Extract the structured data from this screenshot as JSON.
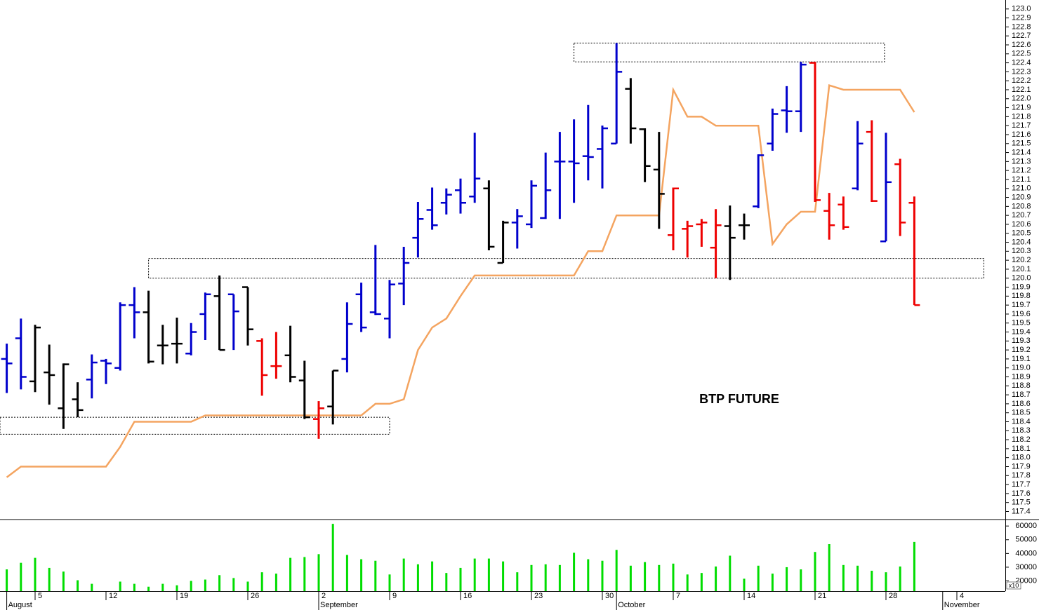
{
  "chart_data": {
    "type": "ohlc",
    "annotation": "BTP FUTURE",
    "x": [
      0,
      1,
      2,
      3,
      4,
      5,
      6,
      7,
      8,
      9,
      10,
      11,
      12,
      13,
      14,
      15,
      16,
      17,
      18,
      19,
      20,
      21,
      22,
      23,
      24,
      25,
      26,
      27,
      28,
      29,
      30,
      31,
      32,
      33,
      34,
      35,
      36,
      37,
      38,
      39,
      40,
      41,
      42,
      43,
      44,
      45,
      46,
      47,
      48,
      49,
      50,
      51,
      52,
      53,
      54,
      55,
      56,
      57,
      58,
      59,
      60,
      61,
      62,
      63,
      64
    ],
    "xlim": [
      -0.475,
      70.416
    ],
    "xticks": [
      {
        "value": 2,
        "label": "5"
      },
      {
        "value": 7,
        "label": "12"
      },
      {
        "value": 12,
        "label": "19"
      },
      {
        "value": 17,
        "label": "26"
      },
      {
        "value": 22,
        "label": "2"
      },
      {
        "value": 27,
        "label": "9"
      },
      {
        "value": 32,
        "label": "16"
      },
      {
        "value": 37,
        "label": "23"
      },
      {
        "value": 42,
        "label": "30"
      },
      {
        "value": 47,
        "label": "7"
      },
      {
        "value": 52,
        "label": "14"
      },
      {
        "value": 57,
        "label": "21"
      },
      {
        "value": 62,
        "label": "28"
      },
      {
        "value": 67,
        "label": "4"
      }
    ],
    "month_labels": [
      {
        "value": 0,
        "label": "August"
      },
      {
        "value": 22,
        "label": "September"
      },
      {
        "value": 43,
        "label": "October"
      },
      {
        "value": 66,
        "label": "November"
      }
    ],
    "ylim": [
      117.31,
      123.1
    ],
    "yticks": [
      117.4,
      117.5,
      117.6,
      117.7,
      117.8,
      117.9,
      {
        "value": 118,
        "label": "118.0"
      },
      118.1,
      118.2,
      118.3,
      118.4,
      118.5,
      118.6,
      118.7,
      118.8,
      118.9,
      {
        "value": 119,
        "label": "119.0"
      },
      119.1,
      119.2,
      119.3,
      119.4,
      119.5,
      119.6,
      119.7,
      119.8,
      119.9,
      {
        "value": 120,
        "label": "120.0"
      },
      120.1,
      120.2,
      120.3,
      120.4,
      120.5,
      120.6,
      120.7,
      120.8,
      120.9,
      {
        "value": 121,
        "label": "121.0"
      },
      121.1,
      121.2,
      121.3,
      121.4,
      121.5,
      121.6,
      121.7,
      121.8,
      121.9,
      {
        "value": 122,
        "label": "122.0"
      },
      122.1,
      122.2,
      122.3,
      122.4,
      122.5,
      122.6,
      122.7,
      122.8,
      122.9,
      {
        "value": 123,
        "label": "123.0"
      }
    ],
    "ohlc": {
      "open": [
        119.1,
        119.33,
        118.85,
        118.95,
        118.55,
        118.65,
        118.87,
        119.08,
        119.0,
        119.7,
        119.62,
        119.25,
        119.27,
        119.16,
        119.6,
        119.8,
        119.82,
        119.9,
        119.3,
        119.02,
        119.14,
        118.86,
        118.43,
        118.57,
        119.1,
        119.82,
        119.62,
        119.55,
        119.94,
        120.45,
        120.76,
        120.84,
        120.98,
        120.91,
        121.0,
        120.17,
        120.62,
        120.6,
        120.67,
        121.3,
        121.3,
        121.36,
        121.44,
        121.5,
        122.11,
        121.66,
        121.21,
        120.48,
        120.55,
        120.6,
        120.34,
        120.58,
        120.59,
        120.8,
        121.5,
        121.87,
        121.86,
        122.4,
        120.75,
        120.82,
        121.0,
        121.63,
        120.41,
        121.27,
        120.84
      ],
      "high": [
        119.27,
        119.55,
        119.48,
        119.26,
        119.05,
        118.84,
        119.15,
        119.1,
        119.73,
        119.9,
        119.86,
        119.48,
        119.56,
        119.5,
        119.84,
        120.03,
        119.82,
        119.9,
        119.33,
        119.4,
        119.47,
        119.08,
        118.63,
        118.97,
        119.73,
        119.95,
        120.37,
        119.98,
        120.35,
        120.85,
        121.01,
        121.0,
        121.11,
        121.62,
        121.09,
        120.64,
        120.77,
        121.09,
        121.4,
        121.63,
        121.77,
        121.93,
        121.7,
        122.62,
        122.23,
        121.67,
        121.63,
        121.01,
        120.64,
        120.66,
        120.77,
        120.81,
        120.72,
        121.38,
        121.89,
        122.14,
        122.41,
        122.41,
        120.95,
        120.91,
        121.75,
        121.76,
        121.62,
        121.33,
        120.91
      ],
      "low": [
        118.72,
        118.76,
        118.73,
        118.59,
        118.32,
        118.45,
        118.66,
        118.82,
        118.97,
        119.33,
        119.05,
        119.04,
        119.05,
        119.14,
        119.31,
        119.2,
        119.2,
        119.25,
        118.69,
        118.88,
        118.84,
        118.43,
        118.21,
        118.37,
        118.95,
        119.4,
        119.59,
        119.33,
        119.7,
        120.23,
        120.54,
        120.71,
        120.72,
        120.84,
        120.31,
        120.17,
        120.33,
        120.56,
        120.66,
        120.66,
        120.84,
        121.09,
        121.0,
        121.5,
        121.5,
        121.07,
        120.55,
        120.31,
        120.23,
        120.35,
        120.0,
        119.98,
        120.43,
        120.78,
        121.42,
        121.62,
        121.63,
        120.85,
        120.43,
        120.54,
        120.98,
        120.85,
        120.41,
        120.47,
        119.7
      ],
      "close": [
        119.05,
        118.9,
        119.45,
        118.92,
        119.04,
        118.53,
        119.06,
        119.05,
        119.7,
        119.62,
        119.07,
        119.25,
        119.27,
        119.4,
        119.82,
        119.2,
        119.63,
        119.43,
        118.92,
        119.02,
        118.9,
        118.45,
        118.55,
        118.97,
        119.49,
        119.45,
        119.6,
        119.93,
        120.17,
        120.66,
        120.59,
        120.93,
        120.84,
        121.11,
        120.35,
        120.62,
        120.69,
        121.03,
        120.98,
        121.3,
        121.28,
        121.35,
        121.67,
        122.3,
        121.67,
        121.25,
        120.94,
        121.0,
        120.58,
        120.62,
        120.59,
        120.45,
        120.59,
        121.37,
        121.83,
        121.86,
        122.38,
        120.87,
        120.59,
        120.57,
        121.5,
        120.86,
        121.07,
        120.62,
        119.7
      ],
      "colors": [
        "#0000cc",
        "#0000cc",
        "#000000",
        "#000000",
        "#000000",
        "#000000",
        "#0000cc",
        "#0000cc",
        "#0000cc",
        "#0000cc",
        "#000000",
        "#000000",
        "#000000",
        "#0000cc",
        "#0000cc",
        "#000000",
        "#0000cc",
        "#000000",
        "#ee0000",
        "#ee0000",
        "#000000",
        "#000000",
        "#ee0000",
        "#000000",
        "#0000cc",
        "#0000cc",
        "#0000cc",
        "#0000cc",
        "#0000cc",
        "#0000cc",
        "#0000cc",
        "#0000cc",
        "#0000cc",
        "#0000cc",
        "#000000",
        "#000000",
        "#0000cc",
        "#0000cc",
        "#0000cc",
        "#0000cc",
        "#0000cc",
        "#0000cc",
        "#0000cc",
        "#0000cc",
        "#000000",
        "#000000",
        "#000000",
        "#ee0000",
        "#ee0000",
        "#ee0000",
        "#ee0000",
        "#000000",
        "#000000",
        "#0000cc",
        "#0000cc",
        "#0000cc",
        "#0000cc",
        "#ee0000",
        "#ee0000",
        "#ee0000",
        "#0000cc",
        "#ee0000",
        "#0000cc",
        "#ee0000",
        "#ee0000"
      ]
    },
    "line": {
      "color": "#f4a460",
      "values": [
        117.78,
        117.9,
        117.9,
        117.9,
        117.9,
        117.9,
        117.9,
        117.9,
        118.12,
        118.4,
        118.4,
        118.4,
        118.4,
        118.4,
        118.47,
        118.47,
        118.47,
        118.47,
        118.47,
        118.47,
        118.47,
        118.47,
        118.47,
        118.47,
        118.47,
        118.47,
        118.6,
        118.6,
        118.65,
        119.2,
        119.45,
        119.55,
        119.8,
        120.03,
        120.03,
        120.03,
        120.03,
        120.03,
        120.03,
        120.03,
        120.03,
        120.3,
        120.3,
        120.7,
        120.7,
        120.7,
        120.7,
        122.1,
        121.8,
        121.8,
        121.7,
        121.7,
        121.7,
        121.7,
        120.38,
        120.6,
        120.74,
        120.74,
        122.15,
        122.1,
        122.1,
        122.1,
        122.1,
        122.1,
        121.85
      ]
    },
    "zones": [
      {
        "x": [
          40,
          61.9
        ],
        "y": [
          122.41,
          122.62
        ]
      },
      {
        "x": [
          10,
          68.9
        ],
        "y": [
          120.0,
          120.22
        ]
      },
      {
        "x": [
          -0.475,
          27
        ],
        "y": [
          118.26,
          118.45
        ]
      }
    ],
    "volume": {
      "color": "#00dd00",
      "unit_label": "x10",
      "ylim": [
        12600,
        64700
      ],
      "yticks": [
        20000,
        30000,
        40000,
        50000,
        60000
      ],
      "values": [
        28400,
        33200,
        36800,
        29500,
        26800,
        20500,
        17900,
        null,
        19500,
        17900,
        15800,
        17900,
        16800,
        20000,
        21000,
        24200,
        22100,
        19500,
        26300,
        25300,
        36800,
        37400,
        39500,
        61600,
        38900,
        35800,
        34700,
        24700,
        36300,
        32100,
        34200,
        25800,
        29500,
        36300,
        36300,
        34200,
        26300,
        31600,
        32100,
        31600,
        40500,
        35800,
        34700,
        42600,
        31100,
        33700,
        31600,
        32600,
        24700,
        25800,
        30500,
        38400,
        21600,
        31100,
        25300,
        30000,
        28400,
        41100,
        46800,
        31600,
        31100,
        27400,
        26300,
        30500,
        48400
      ]
    }
  }
}
